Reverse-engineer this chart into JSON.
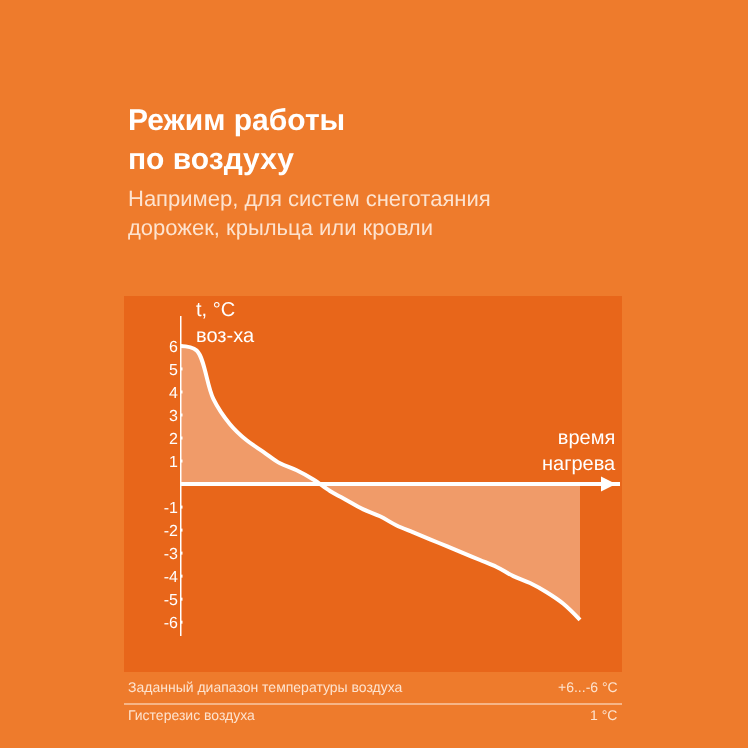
{
  "chart_data": {
    "type": "area",
    "title": "Режим работы\nпо воздуху",
    "subtitle": "Например, для систем снеготаяния\nдорожек, крыльца или кровли",
    "xlabel": "время\nнагрева",
    "ylabel": "t, °C\nвоз-ха",
    "categories": [
      null,
      null,
      null,
      null,
      null,
      null,
      null,
      null,
      null,
      null,
      null,
      null,
      null,
      null,
      null,
      null,
      null,
      null,
      null,
      null,
      null,
      null,
      null,
      null,
      null
    ],
    "series": [
      {
        "color": "#ffffff",
        "values": [
          6.0,
          5.8,
          3.7,
          2.6,
          1.9,
          1.4,
          0.9,
          0.6,
          0.2,
          -0.3,
          -0.7,
          -1.1,
          -1.4,
          -1.8,
          -2.1,
          -2.4,
          -2.7,
          -3.0,
          -3.3,
          -3.6,
          -4.0,
          -4.3,
          -4.7,
          -5.2,
          -5.9
        ]
      }
    ],
    "ylim": [
      -6.6,
      7.3
    ],
    "yticks": [
      6,
      5,
      4,
      3,
      2,
      1,
      -1,
      -2,
      -3,
      -4,
      -5,
      -6
    ],
    "tick_labels": "y",
    "grid": false,
    "marker": "none",
    "line_style": "solid",
    "annotations": [
      "Заданный диапазон температуры воздуха",
      "+6...-6 °C",
      "Гистерезис воздуха",
      "1 °C"
    ]
  }
}
